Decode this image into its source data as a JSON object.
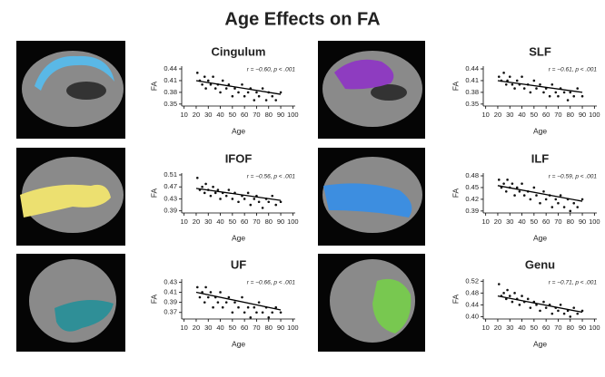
{
  "title": "Age Effects on FA",
  "chart_data": [
    {
      "type": "scatter",
      "title": "Cingulum",
      "xlabel": "Age",
      "ylabel": "FA",
      "annotation": "r = −0.60, p < .001",
      "color": "#111111",
      "x": [
        21,
        23,
        25,
        27,
        28,
        30,
        32,
        34,
        36,
        38,
        40,
        42,
        45,
        47,
        50,
        52,
        55,
        58,
        60,
        63,
        65,
        68,
        70,
        72,
        75,
        78,
        80,
        83,
        86,
        90
      ],
      "values": [
        0.43,
        0.41,
        0.4,
        0.42,
        0.39,
        0.41,
        0.4,
        0.42,
        0.39,
        0.4,
        0.38,
        0.41,
        0.39,
        0.4,
        0.37,
        0.39,
        0.38,
        0.4,
        0.37,
        0.38,
        0.39,
        0.36,
        0.38,
        0.37,
        0.39,
        0.36,
        0.38,
        0.37,
        0.36,
        0.38
      ],
      "fit": {
        "x": [
          20,
          90
        ],
        "y": [
          0.41,
          0.375
        ]
      },
      "xlim": [
        8,
        102
      ],
      "xticks": [
        10,
        20,
        30,
        40,
        50,
        60,
        70,
        80,
        90,
        100
      ],
      "ylim": [
        0.345,
        0.447
      ],
      "yticks": [
        0.35,
        0.38,
        0.41,
        0.44
      ]
    },
    {
      "type": "scatter",
      "title": "SLF",
      "xlabel": "Age",
      "ylabel": "FA",
      "annotation": "r = −0.61, p < .001",
      "color": "#111111",
      "x": [
        21,
        23,
        25,
        27,
        28,
        30,
        32,
        34,
        36,
        38,
        40,
        42,
        45,
        47,
        50,
        52,
        55,
        58,
        60,
        63,
        65,
        68,
        70,
        72,
        75,
        78,
        80,
        83,
        86,
        90
      ],
      "values": [
        0.42,
        0.41,
        0.43,
        0.4,
        0.41,
        0.42,
        0.4,
        0.39,
        0.41,
        0.4,
        0.42,
        0.39,
        0.4,
        0.38,
        0.41,
        0.39,
        0.4,
        0.38,
        0.39,
        0.37,
        0.4,
        0.38,
        0.37,
        0.39,
        0.38,
        0.36,
        0.38,
        0.37,
        0.39,
        0.37
      ],
      "fit": {
        "x": [
          20,
          90
        ],
        "y": [
          0.41,
          0.38
        ]
      },
      "xlim": [
        8,
        102
      ],
      "xticks": [
        10,
        20,
        30,
        40,
        50,
        60,
        70,
        80,
        90,
        100
      ],
      "ylim": [
        0.345,
        0.447
      ],
      "yticks": [
        0.35,
        0.38,
        0.41,
        0.44
      ]
    },
    {
      "type": "scatter",
      "title": "IFOF",
      "xlabel": "Age",
      "ylabel": "FA",
      "annotation": "r = −0.56, p < .001",
      "color": "#111111",
      "x": [
        21,
        23,
        25,
        27,
        28,
        30,
        32,
        34,
        36,
        38,
        40,
        42,
        45,
        47,
        50,
        52,
        55,
        58,
        60,
        63,
        65,
        68,
        70,
        72,
        75,
        78,
        80,
        83,
        86,
        90
      ],
      "values": [
        0.5,
        0.46,
        0.47,
        0.45,
        0.48,
        0.46,
        0.44,
        0.47,
        0.45,
        0.46,
        0.43,
        0.45,
        0.44,
        0.46,
        0.43,
        0.45,
        0.42,
        0.44,
        0.43,
        0.45,
        0.41,
        0.43,
        0.44,
        0.42,
        0.4,
        0.43,
        0.42,
        0.44,
        0.41,
        0.42
      ],
      "fit": {
        "x": [
          20,
          90
        ],
        "y": [
          0.465,
          0.425
        ]
      },
      "xlim": [
        8,
        102
      ],
      "xticks": [
        10,
        20,
        30,
        40,
        50,
        60,
        70,
        80,
        90,
        100
      ],
      "ylim": [
        0.383,
        0.516
      ],
      "yticks": [
        0.39,
        0.43,
        0.47,
        0.51
      ]
    },
    {
      "type": "scatter",
      "title": "ILF",
      "xlabel": "Age",
      "ylabel": "FA",
      "annotation": "r = −0.59, p < .001",
      "color": "#111111",
      "x": [
        21,
        23,
        25,
        27,
        28,
        30,
        32,
        34,
        36,
        38,
        40,
        42,
        45,
        47,
        50,
        52,
        55,
        58,
        60,
        63,
        65,
        68,
        70,
        72,
        75,
        78,
        80,
        83,
        86,
        90
      ],
      "values": [
        0.47,
        0.45,
        0.46,
        0.44,
        0.47,
        0.45,
        0.46,
        0.43,
        0.45,
        0.44,
        0.46,
        0.43,
        0.44,
        0.42,
        0.45,
        0.43,
        0.41,
        0.44,
        0.42,
        0.43,
        0.4,
        0.42,
        0.41,
        0.43,
        0.4,
        0.42,
        0.39,
        0.41,
        0.4,
        0.42
      ],
      "fit": {
        "x": [
          20,
          90
        ],
        "y": [
          0.455,
          0.415
        ]
      },
      "xlim": [
        8,
        102
      ],
      "xticks": [
        10,
        20,
        30,
        40,
        50,
        60,
        70,
        80,
        90,
        100
      ],
      "ylim": [
        0.385,
        0.487
      ],
      "yticks": [
        0.39,
        0.42,
        0.45,
        0.48
      ]
    },
    {
      "type": "scatter",
      "title": "UF",
      "xlabel": "Age",
      "ylabel": "FA",
      "annotation": "r = −0.66, p < .001",
      "color": "#111111",
      "x": [
        21,
        23,
        25,
        27,
        28,
        30,
        32,
        34,
        36,
        38,
        40,
        42,
        45,
        47,
        50,
        52,
        55,
        58,
        60,
        63,
        65,
        68,
        70,
        72,
        75,
        78,
        80,
        83,
        86,
        90
      ],
      "values": [
        0.42,
        0.4,
        0.41,
        0.39,
        0.42,
        0.4,
        0.41,
        0.38,
        0.4,
        0.39,
        0.41,
        0.38,
        0.39,
        0.4,
        0.37,
        0.39,
        0.38,
        0.4,
        0.37,
        0.38,
        0.36,
        0.38,
        0.37,
        0.39,
        0.37,
        0.38,
        0.36,
        0.37,
        0.38,
        0.37
      ],
      "fit": {
        "x": [
          20,
          90
        ],
        "y": [
          0.41,
          0.375
        ]
      },
      "xlim": [
        8,
        102
      ],
      "xticks": [
        10,
        20,
        30,
        40,
        50,
        60,
        70,
        80,
        90,
        100
      ],
      "ylim": [
        0.357,
        0.436
      ],
      "yticks": [
        0.37,
        0.39,
        0.41,
        0.43
      ]
    },
    {
      "type": "scatter",
      "title": "Genu",
      "xlabel": "Age",
      "ylabel": "FA",
      "annotation": "r = −0.71, p < .001",
      "color": "#111111",
      "x": [
        21,
        23,
        25,
        27,
        28,
        30,
        32,
        34,
        36,
        38,
        40,
        42,
        45,
        47,
        50,
        52,
        55,
        58,
        60,
        63,
        65,
        68,
        70,
        72,
        75,
        78,
        80,
        83,
        86,
        90
      ],
      "values": [
        0.51,
        0.47,
        0.48,
        0.46,
        0.49,
        0.47,
        0.45,
        0.48,
        0.46,
        0.44,
        0.47,
        0.45,
        0.46,
        0.43,
        0.45,
        0.44,
        0.42,
        0.45,
        0.43,
        0.44,
        0.41,
        0.43,
        0.42,
        0.44,
        0.41,
        0.42,
        0.4,
        0.43,
        0.41,
        0.42
      ],
      "fit": {
        "x": [
          20,
          90
        ],
        "y": [
          0.47,
          0.415
        ]
      },
      "xlim": [
        8,
        102
      ],
      "xticks": [
        10,
        20,
        30,
        40,
        50,
        60,
        70,
        80,
        90,
        100
      ],
      "ylim": [
        0.392,
        0.527
      ],
      "yticks": [
        {
          "value": 0.4,
          "label": "0.40"
        },
        0.44,
        0.48,
        0.52
      ]
    }
  ]
}
